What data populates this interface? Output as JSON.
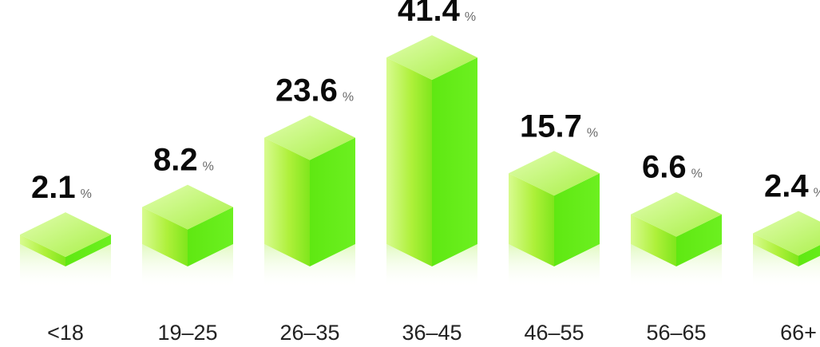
{
  "chart_data": {
    "type": "bar",
    "categories": [
      "<18",
      "19–25",
      "26–35",
      "36–45",
      "46–55",
      "56–65",
      "66+"
    ],
    "values": [
      2.1,
      8.2,
      23.6,
      41.4,
      15.7,
      6.6,
      2.4
    ],
    "value_labels": [
      "2.1",
      "8.2",
      "23.6",
      "41.4",
      "15.7",
      "6.6",
      "2.4"
    ],
    "unit": "%",
    "title": "",
    "xlabel": "",
    "ylabel": "",
    "ylim": [
      0,
      45
    ],
    "grid": false,
    "legend": "none",
    "colors": {
      "bar_front_light": "#d8fb90",
      "bar_front_mid": "#aef03a",
      "bar_front_dark": "#7fe61c",
      "bar_side": "#63ec18",
      "bar_top_light": "#e2fdb0",
      "bar_top_dark": "#a8f046",
      "value_text": "#0a0a0a",
      "unit_text": "#6a6a6a",
      "category_text": "#222222"
    }
  }
}
